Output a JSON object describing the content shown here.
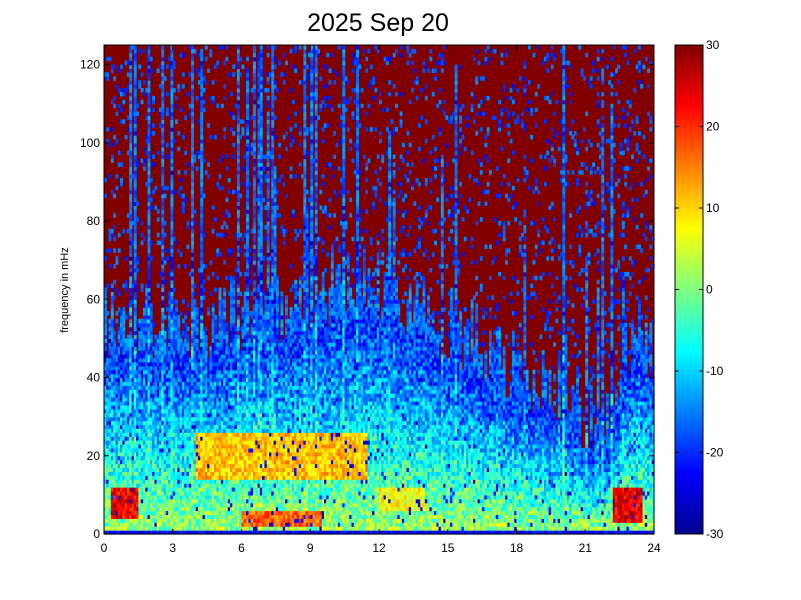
{
  "chart_data": {
    "type": "heatmap",
    "title": "2025 Sep 20",
    "xlabel": "",
    "ylabel": "frequency in mHz",
    "xlim": [
      0,
      24
    ],
    "ylim": [
      0,
      125
    ],
    "x_ticks": [
      "0",
      "3",
      "6",
      "9",
      "12",
      "15",
      "18",
      "21",
      "24"
    ],
    "y_ticks": [
      "0",
      "20",
      "40",
      "60",
      "80",
      "100",
      "120"
    ],
    "colorbar": {
      "colormap": "jet",
      "range": [
        -30,
        30
      ],
      "ticks": [
        "-30",
        "-20",
        "-10",
        "0",
        "10",
        "20",
        "30"
      ]
    },
    "grid": false,
    "x_resolution_hours": 0.1,
    "y_resolution_mHz": 1.0,
    "frequency_floor_band_mHz": [
      0,
      1.5
    ],
    "activity_envelope": {
      "description": "upper frequency (mHz) of the active band at each hour",
      "hours": [
        0,
        1,
        2,
        3,
        4,
        5,
        6,
        7,
        8,
        9,
        10,
        11,
        12,
        13,
        14,
        15,
        16,
        17,
        18,
        19,
        20,
        21,
        22,
        23,
        24
      ],
      "upper_mHz": [
        42,
        45,
        43,
        42,
        44,
        45,
        47,
        46,
        48,
        50,
        52,
        54,
        53,
        50,
        47,
        44,
        40,
        36,
        32,
        30,
        28,
        20,
        18,
        45,
        35
      ]
    },
    "hot_regions": [
      {
        "hours": [
          0.3,
          1.5
        ],
        "freq_mHz": [
          4,
          12
        ],
        "level": 26
      },
      {
        "hours": [
          4.0,
          11.5
        ],
        "freq_mHz": [
          14,
          26
        ],
        "level": 14
      },
      {
        "hours": [
          6.0,
          9.5
        ],
        "freq_mHz": [
          2,
          6
        ],
        "level": 20
      },
      {
        "hours": [
          12.0,
          14.0
        ],
        "freq_mHz": [
          6,
          12
        ],
        "level": 10
      },
      {
        "hours": [
          22.2,
          23.5
        ],
        "freq_mHz": [
          3,
          12
        ],
        "level": 27
      }
    ]
  }
}
